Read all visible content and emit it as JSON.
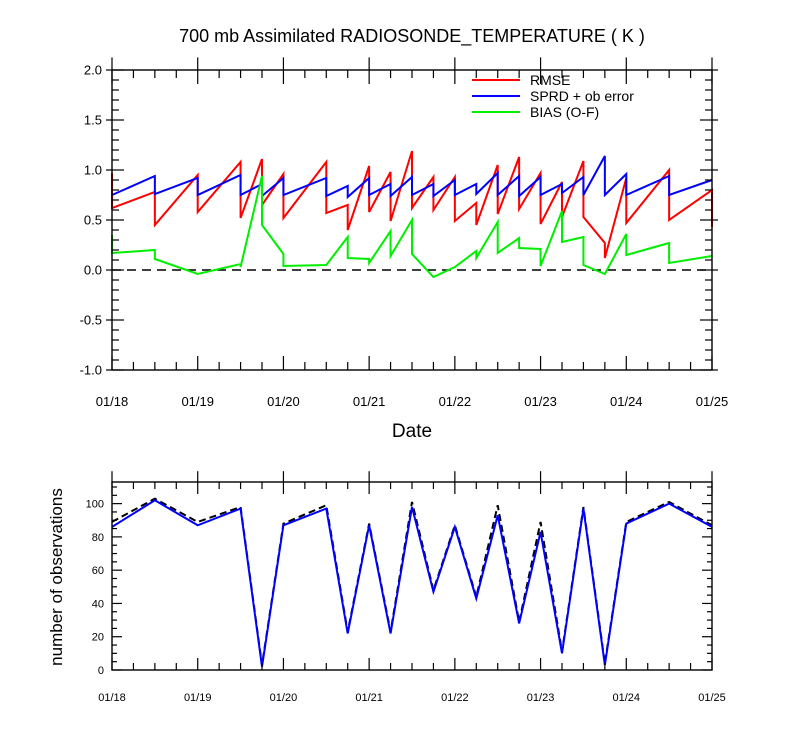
{
  "title": "700 mb Assimilated RADIOSONDE_TEMPERATURE ( K )",
  "chart_data": [
    {
      "type": "line",
      "title": "700 mb Assimilated RADIOSONDE_TEMPERATURE ( K )",
      "xlabel": "Date",
      "ylabel": "",
      "xlim": [
        0,
        7
      ],
      "ylim": [
        -1.0,
        2.0
      ],
      "yticks": [
        -1.0,
        -0.5,
        0.0,
        0.5,
        1.0,
        1.5,
        2.0
      ],
      "ytick_labels": [
        "-1.0",
        "-0.5",
        "0.0",
        "0.5",
        "1.0",
        "1.5",
        "2.0"
      ],
      "xticks": [
        0,
        1,
        2,
        3,
        4,
        5,
        6,
        7
      ],
      "xtick_labels": [
        "01/18",
        "01/19",
        "01/20",
        "01/21",
        "01/22",
        "01/23",
        "01/24",
        "01/25"
      ],
      "legend_position": "top-right",
      "reference_line": {
        "y": 0.0,
        "style": "dashed",
        "color": "#000000"
      },
      "series": [
        {
          "name": "RMSE",
          "color": "#ff0000",
          "points": [
            [
              0.0,
              0.97
            ],
            [
              0.0,
              0.62
            ],
            [
              0.5,
              0.78
            ],
            [
              0.5,
              0.45
            ],
            [
              1.0,
              0.95
            ],
            [
              1.0,
              0.58
            ],
            [
              1.5,
              1.08
            ],
            [
              1.5,
              0.52
            ],
            [
              1.75,
              1.11
            ],
            [
              1.75,
              0.65
            ],
            [
              2.0,
              0.96
            ],
            [
              2.0,
              0.52
            ],
            [
              2.5,
              1.08
            ],
            [
              2.5,
              0.57
            ],
            [
              2.75,
              0.65
            ],
            [
              2.75,
              0.4
            ],
            [
              3.0,
              1.04
            ],
            [
              3.0,
              0.58
            ],
            [
              3.25,
              0.98
            ],
            [
              3.25,
              0.49
            ],
            [
              3.5,
              1.19
            ],
            [
              3.5,
              0.62
            ],
            [
              3.75,
              0.93
            ],
            [
              3.75,
              0.6
            ],
            [
              4.0,
              0.93
            ],
            [
              4.0,
              0.49
            ],
            [
              4.25,
              0.67
            ],
            [
              4.25,
              0.45
            ],
            [
              4.5,
              1.05
            ],
            [
              4.5,
              0.56
            ],
            [
              4.75,
              1.13
            ],
            [
              4.75,
              0.61
            ],
            [
              5.0,
              0.97
            ],
            [
              5.0,
              0.46
            ],
            [
              5.25,
              0.88
            ],
            [
              5.25,
              0.53
            ],
            [
              5.5,
              1.09
            ],
            [
              5.5,
              0.53
            ],
            [
              5.75,
              0.27
            ],
            [
              5.75,
              0.12
            ],
            [
              6.0,
              0.92
            ],
            [
              6.0,
              0.47
            ],
            [
              6.5,
              1.0
            ],
            [
              6.5,
              0.5
            ],
            [
              7.0,
              0.8
            ],
            [
              7.0,
              0.43
            ]
          ]
        },
        {
          "name": "SPRD + ob error",
          "color": "#0000ff",
          "points": [
            [
              0.0,
              0.75
            ],
            [
              0.5,
              0.94
            ],
            [
              0.5,
              0.76
            ],
            [
              1.0,
              0.92
            ],
            [
              1.0,
              0.75
            ],
            [
              1.5,
              0.95
            ],
            [
              1.5,
              0.75
            ],
            [
              1.75,
              0.86
            ],
            [
              1.75,
              0.74
            ],
            [
              2.0,
              0.92
            ],
            [
              2.0,
              0.75
            ],
            [
              2.5,
              0.92
            ],
            [
              2.5,
              0.74
            ],
            [
              2.75,
              0.84
            ],
            [
              2.75,
              0.73
            ],
            [
              3.0,
              0.92
            ],
            [
              3.0,
              0.75
            ],
            [
              3.25,
              0.86
            ],
            [
              3.25,
              0.74
            ],
            [
              3.5,
              0.93
            ],
            [
              3.5,
              0.75
            ],
            [
              3.75,
              0.86
            ],
            [
              3.75,
              0.74
            ],
            [
              4.0,
              0.9
            ],
            [
              4.0,
              0.75
            ],
            [
              4.25,
              0.86
            ],
            [
              4.25,
              0.76
            ],
            [
              4.5,
              0.97
            ],
            [
              4.5,
              0.75
            ],
            [
              4.75,
              0.94
            ],
            [
              4.75,
              0.74
            ],
            [
              5.0,
              0.93
            ],
            [
              5.0,
              0.75
            ],
            [
              5.25,
              0.86
            ],
            [
              5.25,
              0.77
            ],
            [
              5.5,
              0.93
            ],
            [
              5.5,
              0.75
            ],
            [
              5.75,
              1.14
            ],
            [
              5.75,
              0.75
            ],
            [
              6.0,
              0.96
            ],
            [
              6.0,
              0.75
            ],
            [
              6.5,
              0.94
            ],
            [
              6.5,
              0.75
            ],
            [
              7.0,
              0.9
            ]
          ]
        },
        {
          "name": "BIAS (O-F)",
          "color": "#00ee00",
          "points": [
            [
              0.0,
              0.35
            ],
            [
              0.0,
              0.17
            ],
            [
              0.5,
              0.2
            ],
            [
              0.5,
              0.11
            ],
            [
              1.0,
              -0.04
            ],
            [
              1.5,
              0.06
            ],
            [
              1.5,
              0.03
            ],
            [
              1.75,
              0.94
            ],
            [
              1.75,
              0.45
            ],
            [
              2.0,
              0.16
            ],
            [
              2.0,
              0.04
            ],
            [
              2.5,
              0.05
            ],
            [
              2.75,
              0.33
            ],
            [
              2.75,
              0.12
            ],
            [
              3.0,
              0.11
            ],
            [
              3.0,
              0.07
            ],
            [
              3.25,
              0.39
            ],
            [
              3.25,
              0.14
            ],
            [
              3.5,
              0.5
            ],
            [
              3.5,
              0.16
            ],
            [
              3.75,
              -0.07
            ],
            [
              4.0,
              0.03
            ],
            [
              4.25,
              0.19
            ],
            [
              4.25,
              0.12
            ],
            [
              4.5,
              0.48
            ],
            [
              4.5,
              0.17
            ],
            [
              4.75,
              0.32
            ],
            [
              4.75,
              0.22
            ],
            [
              5.0,
              0.21
            ],
            [
              5.0,
              0.04
            ],
            [
              5.25,
              0.59
            ],
            [
              5.25,
              0.28
            ],
            [
              5.5,
              0.33
            ],
            [
              5.5,
              0.05
            ],
            [
              5.75,
              -0.04
            ],
            [
              6.0,
              0.36
            ],
            [
              6.0,
              0.15
            ],
            [
              6.5,
              0.27
            ],
            [
              6.5,
              0.07
            ],
            [
              7.0,
              0.14
            ]
          ]
        }
      ]
    },
    {
      "type": "line",
      "title": "",
      "xlabel": "",
      "ylabel": "number of observations",
      "xlim": [
        0,
        7
      ],
      "ylim": [
        0,
        113
      ],
      "yticks": [
        0,
        20,
        40,
        60,
        80,
        100
      ],
      "ytick_labels": [
        "0",
        "20",
        "40",
        "60",
        "80",
        "100"
      ],
      "xticks": [
        0,
        1,
        2,
        3,
        4,
        5,
        6,
        7
      ],
      "xtick_labels": [
        "01/18",
        "01/19",
        "01/20",
        "01/21",
        "01/22",
        "01/23",
        "01/24",
        "01/25"
      ],
      "series": [
        {
          "color": "#000000",
          "style": "dashed",
          "points": [
            [
              0.0,
              89
            ],
            [
              0.5,
              103
            ],
            [
              1.0,
              89
            ],
            [
              1.5,
              98
            ],
            [
              1.75,
              3
            ],
            [
              2.0,
              88
            ],
            [
              2.5,
              99
            ],
            [
              2.75,
              23
            ],
            [
              3.0,
              88
            ],
            [
              3.25,
              23
            ],
            [
              3.5,
              101
            ],
            [
              3.75,
              48
            ],
            [
              4.0,
              87
            ],
            [
              4.25,
              44
            ],
            [
              4.5,
              99
            ],
            [
              4.75,
              29
            ],
            [
              5.0,
              89
            ],
            [
              5.25,
              11
            ],
            [
              5.5,
              98
            ],
            [
              5.75,
              4
            ],
            [
              6.0,
              89
            ],
            [
              6.5,
              101
            ],
            [
              7.0,
              87
            ]
          ]
        },
        {
          "color": "#0000ff",
          "points": [
            [
              0.0,
              86
            ],
            [
              0.5,
              102
            ],
            [
              1.0,
              87
            ],
            [
              1.5,
              97
            ],
            [
              1.75,
              2
            ],
            [
              2.0,
              87
            ],
            [
              2.5,
              97
            ],
            [
              2.75,
              22
            ],
            [
              3.0,
              87
            ],
            [
              3.25,
              22
            ],
            [
              3.5,
              98
            ],
            [
              3.75,
              47
            ],
            [
              4.0,
              86
            ],
            [
              4.25,
              43
            ],
            [
              4.5,
              93
            ],
            [
              4.75,
              28
            ],
            [
              5.0,
              83
            ],
            [
              5.25,
              10
            ],
            [
              5.5,
              97
            ],
            [
              5.75,
              3
            ],
            [
              6.0,
              88
            ],
            [
              6.5,
              100
            ],
            [
              7.0,
              86
            ]
          ]
        }
      ]
    }
  ]
}
